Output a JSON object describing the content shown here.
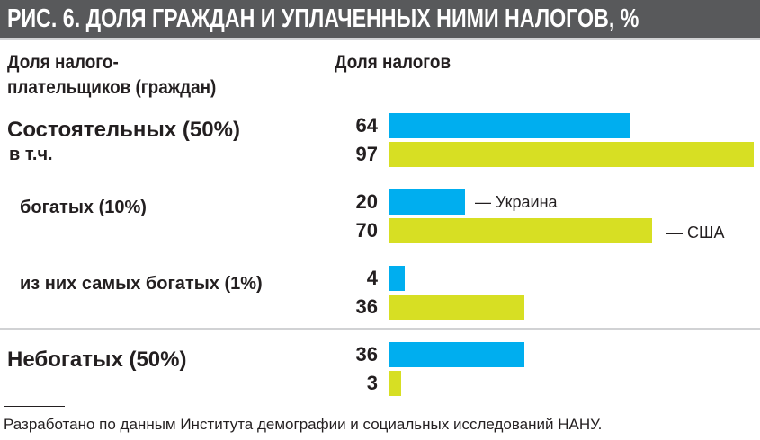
{
  "chart_data": {
    "type": "bar",
    "orientation": "horizontal",
    "title": "РИС. 6. ДОЛЯ ГРАЖДАН И УПЛАЧЕННЫХ НИМИ НАЛОГОВ, %",
    "left_header": [
      "Доля налого-",
      "плательщиков (граждан)"
    ],
    "right_header": "Доля налогов",
    "categories": [
      "Состоятельных (50%)",
      "богатых (10%)",
      "из них самых богатых (1%)",
      "Небогатых (50%)"
    ],
    "category_note": "в т.ч.",
    "series": [
      {
        "name": "Украина",
        "label": "— Украина",
        "color": "#00aeef",
        "values": [
          64,
          20,
          4,
          36
        ]
      },
      {
        "name": "США",
        "label": "— США",
        "color": "#d7df23",
        "values": [
          97,
          70,
          36,
          3
        ]
      }
    ],
    "xlim": [
      0,
      97
    ]
  },
  "footnote": "Разработано по данным Института демографии и социальных исследований НАНУ."
}
